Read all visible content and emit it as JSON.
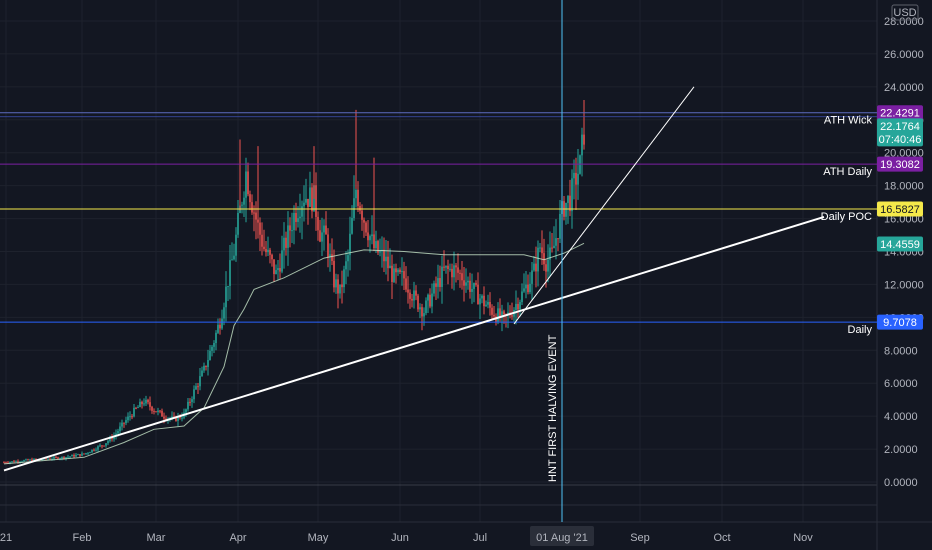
{
  "chart_data": {
    "type": "candlestick",
    "currency": "USD",
    "ylim": [
      0,
      29
    ],
    "y_ticks": [
      "0.0000",
      "2.0000",
      "4.0000",
      "6.0000",
      "8.0000",
      "10.0000",
      "12.0000",
      "14.0000",
      "16.0000",
      "18.0000",
      "20.0000",
      "22.0000",
      "24.0000",
      "26.0000",
      "28.0000"
    ],
    "x_labels": [
      "21",
      "Feb",
      "Mar",
      "Apr",
      "May",
      "Jun",
      "Jul",
      "01 Aug '21",
      "Sep",
      "Oct",
      "Nov"
    ],
    "price_series": [
      [
        0,
        1.2
      ],
      [
        10,
        1.3
      ],
      [
        20,
        1.4
      ],
      [
        30,
        1.5
      ],
      [
        40,
        1.7
      ],
      [
        50,
        2.3
      ],
      [
        55,
        2.8
      ],
      [
        60,
        3.6
      ],
      [
        65,
        4.3
      ],
      [
        70,
        4.9
      ],
      [
        75,
        4.4
      ],
      [
        80,
        4.0
      ],
      [
        85,
        3.8
      ],
      [
        90,
        4.1
      ],
      [
        95,
        5.5
      ],
      [
        100,
        6.8
      ],
      [
        105,
        8.6
      ],
      [
        108,
        9.8
      ],
      [
        112,
        12.3
      ],
      [
        115,
        14.0
      ],
      [
        118,
        16.5
      ],
      [
        121,
        18.8
      ],
      [
        124,
        17.0
      ],
      [
        127,
        15.5
      ],
      [
        130,
        14.2
      ],
      [
        133,
        13.5
      ],
      [
        136,
        12.6
      ],
      [
        140,
        14.2
      ],
      [
        145,
        16.2
      ],
      [
        150,
        17.4
      ],
      [
        155,
        17.2
      ],
      [
        158,
        15.2
      ],
      [
        161,
        14.8
      ],
      [
        165,
        12.2
      ],
      [
        168,
        11.5
      ],
      [
        172,
        13.7
      ],
      [
        176,
        17.8
      ],
      [
        180,
        16.0
      ],
      [
        185,
        14.2
      ],
      [
        190,
        13.6
      ],
      [
        195,
        12.4
      ],
      [
        200,
        12.4
      ],
      [
        205,
        11.2
      ],
      [
        210,
        10.4
      ],
      [
        215,
        11.6
      ],
      [
        220,
        12.8
      ],
      [
        225,
        12.9
      ],
      [
        230,
        12.4
      ],
      [
        235,
        11.6
      ],
      [
        240,
        10.9
      ],
      [
        245,
        10.3
      ],
      [
        250,
        9.8
      ],
      [
        255,
        10.6
      ],
      [
        260,
        11.6
      ],
      [
        265,
        12.8
      ],
      [
        268,
        14.3
      ],
      [
        271,
        13.4
      ],
      [
        274,
        13.8
      ],
      [
        277,
        15.4
      ],
      [
        280,
        16.8
      ],
      [
        283,
        17.2
      ],
      [
        286,
        18.5
      ],
      [
        288,
        19.2
      ],
      [
        290,
        21.3
      ]
    ],
    "vwap_series": [
      [
        0,
        1.1
      ],
      [
        40,
        1.5
      ],
      [
        60,
        2.4
      ],
      [
        75,
        3.2
      ],
      [
        90,
        3.4
      ],
      [
        100,
        4.5
      ],
      [
        110,
        7.0
      ],
      [
        115,
        9.5
      ],
      [
        120,
        10.5
      ],
      [
        125,
        11.7
      ],
      [
        140,
        12.4
      ],
      [
        160,
        13.6
      ],
      [
        180,
        14.1
      ],
      [
        200,
        14.0
      ],
      [
        220,
        13.8
      ],
      [
        260,
        13.8
      ],
      [
        270,
        13.5
      ],
      [
        280,
        13.9
      ],
      [
        290,
        14.5
      ]
    ],
    "horizontal_levels": [
      {
        "value": 22.4291,
        "label": "ATH Wick",
        "badge": "22.4291",
        "color": "#7b1fa2",
        "line": "#5c6bc0"
      },
      {
        "value": 19.3082,
        "label": "ATH Daily",
        "badge": "19.3082",
        "color": "#7b1fa2",
        "line": "#7b1fa2"
      },
      {
        "value": 16.5827,
        "label": "Daily POC",
        "badge": "16.5827",
        "color": "#f5e94a",
        "line": "#f5e94a"
      },
      {
        "value": 9.7078,
        "label": "Daily",
        "badge": "9.7078",
        "color": "#2962ff",
        "line": "#2962ff"
      }
    ],
    "extra_badges": [
      {
        "value": 14.4559,
        "badge": "14.4559",
        "color": "#26a69a"
      }
    ],
    "current_price": {
      "badge": "22.1764",
      "countdown": "07:40:46",
      "color": "#26a69a"
    },
    "vertical_event": {
      "label": "HNT FIRST HALVING EVENT",
      "date_label": "01 Aug '21"
    },
    "trendlines": [
      {
        "name": "long-support",
        "from": [
          0,
          0.7
        ],
        "to": [
          410,
          16.1
        ]
      },
      {
        "name": "steep-support",
        "from": [
          255,
          9.6
        ],
        "to": [
          345,
          24.0
        ]
      }
    ]
  }
}
